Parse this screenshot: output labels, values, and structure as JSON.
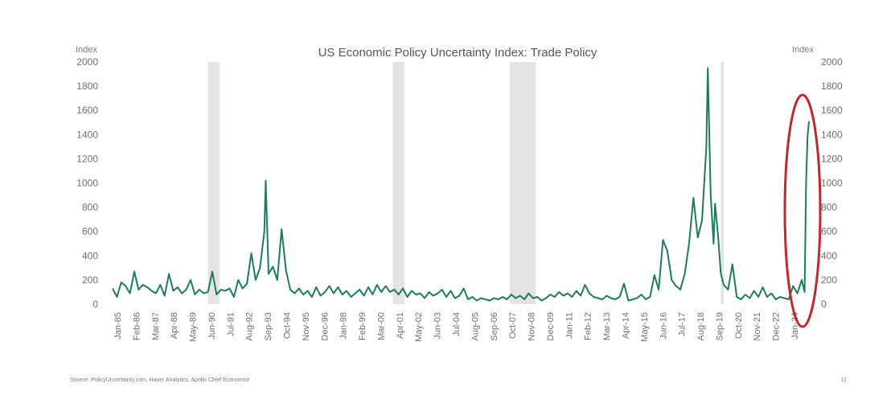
{
  "chart_data": {
    "type": "line",
    "title": "US Economic Policy Uncertainty Index: Trade Policy",
    "ylabel_left": "Index",
    "ylabel_right": "Index",
    "ylim": [
      0,
      2000
    ],
    "yticks": [
      0,
      200,
      400,
      600,
      800,
      1000,
      1200,
      1400,
      1600,
      1800,
      2000
    ],
    "x_tick_labels": [
      "Jan-85",
      "Feb-86",
      "Mar-87",
      "Apr-88",
      "May-89",
      "Jun-90",
      "Jul-91",
      "Aug-92",
      "Sep-93",
      "Oct-94",
      "Nov-95",
      "Dec-96",
      "Jan-98",
      "Feb-99",
      "Mar-00",
      "Apr-01",
      "May-02",
      "Jun-03",
      "Jul-04",
      "Aug-05",
      "Sep-06",
      "Oct-07",
      "Nov-08",
      "Dec-09",
      "Jan-11",
      "Feb-12",
      "Mar-13",
      "Apr-14",
      "May-15",
      "Jun-16",
      "Jul-17",
      "Aug-18",
      "Sep-19",
      "Oct-20",
      "Nov-21",
      "Dec-22",
      "Jan-24"
    ],
    "recessions": [
      [
        "1990-07",
        "1991-03"
      ],
      [
        "2001-03",
        "2001-11"
      ],
      [
        "2007-12",
        "2009-06"
      ],
      [
        "2020-02",
        "2020-04"
      ]
    ],
    "series": [
      {
        "color": "#1f7a60",
        "points": [
          [
            "1985-01",
            130
          ],
          [
            "1985-04",
            60
          ],
          [
            "1985-07",
            180
          ],
          [
            "1985-10",
            150
          ],
          [
            "1986-01",
            90
          ],
          [
            "1986-04",
            270
          ],
          [
            "1986-07",
            120
          ],
          [
            "1986-10",
            160
          ],
          [
            "1987-01",
            140
          ],
          [
            "1987-04",
            110
          ],
          [
            "1987-07",
            90
          ],
          [
            "1987-10",
            160
          ],
          [
            "1988-01",
            70
          ],
          [
            "1988-04",
            250
          ],
          [
            "1988-07",
            110
          ],
          [
            "1988-10",
            140
          ],
          [
            "1989-01",
            90
          ],
          [
            "1989-04",
            120
          ],
          [
            "1989-07",
            200
          ],
          [
            "1989-10",
            80
          ],
          [
            "1990-01",
            120
          ],
          [
            "1990-04",
            90
          ],
          [
            "1990-07",
            100
          ],
          [
            "1990-10",
            270
          ],
          [
            "1991-01",
            80
          ],
          [
            "1991-04",
            120
          ],
          [
            "1991-07",
            110
          ],
          [
            "1991-10",
            130
          ],
          [
            "1992-01",
            60
          ],
          [
            "1992-04",
            200
          ],
          [
            "1992-07",
            130
          ],
          [
            "1992-10",
            170
          ],
          [
            "1993-01",
            420
          ],
          [
            "1993-04",
            200
          ],
          [
            "1993-07",
            300
          ],
          [
            "1993-10",
            600
          ],
          [
            "1993-11",
            1020
          ],
          [
            "1994-01",
            250
          ],
          [
            "1994-04",
            310
          ],
          [
            "1994-07",
            200
          ],
          [
            "1994-10",
            620
          ],
          [
            "1995-01",
            280
          ],
          [
            "1995-04",
            120
          ],
          [
            "1995-07",
            90
          ],
          [
            "1995-10",
            130
          ],
          [
            "1996-01",
            80
          ],
          [
            "1996-04",
            110
          ],
          [
            "1996-07",
            60
          ],
          [
            "1996-10",
            140
          ],
          [
            "1997-01",
            70
          ],
          [
            "1997-04",
            100
          ],
          [
            "1997-07",
            150
          ],
          [
            "1997-10",
            90
          ],
          [
            "1998-01",
            140
          ],
          [
            "1998-04",
            80
          ],
          [
            "1998-07",
            110
          ],
          [
            "1998-10",
            60
          ],
          [
            "1999-01",
            90
          ],
          [
            "1999-04",
            120
          ],
          [
            "1999-07",
            70
          ],
          [
            "1999-10",
            140
          ],
          [
            "2000-01",
            80
          ],
          [
            "2000-04",
            160
          ],
          [
            "2000-07",
            100
          ],
          [
            "2000-10",
            150
          ],
          [
            "2001-01",
            100
          ],
          [
            "2001-04",
            120
          ],
          [
            "2001-07",
            80
          ],
          [
            "2001-10",
            130
          ],
          [
            "2002-01",
            60
          ],
          [
            "2002-04",
            110
          ],
          [
            "2002-07",
            80
          ],
          [
            "2002-10",
            90
          ],
          [
            "2003-01",
            50
          ],
          [
            "2003-04",
            100
          ],
          [
            "2003-07",
            70
          ],
          [
            "2003-10",
            90
          ],
          [
            "2004-01",
            120
          ],
          [
            "2004-04",
            60
          ],
          [
            "2004-07",
            110
          ],
          [
            "2004-10",
            50
          ],
          [
            "2005-01",
            70
          ],
          [
            "2005-04",
            130
          ],
          [
            "2005-07",
            40
          ],
          [
            "2005-10",
            60
          ],
          [
            "2006-01",
            30
          ],
          [
            "2006-04",
            50
          ],
          [
            "2006-07",
            40
          ],
          [
            "2006-10",
            30
          ],
          [
            "2007-01",
            50
          ],
          [
            "2007-04",
            40
          ],
          [
            "2007-07",
            60
          ],
          [
            "2007-10",
            40
          ],
          [
            "2008-01",
            80
          ],
          [
            "2008-04",
            50
          ],
          [
            "2008-07",
            70
          ],
          [
            "2008-10",
            40
          ],
          [
            "2009-01",
            90
          ],
          [
            "2009-04",
            50
          ],
          [
            "2009-07",
            60
          ],
          [
            "2009-10",
            30
          ],
          [
            "2010-01",
            50
          ],
          [
            "2010-04",
            80
          ],
          [
            "2010-07",
            60
          ],
          [
            "2010-10",
            100
          ],
          [
            "2011-01",
            70
          ],
          [
            "2011-04",
            90
          ],
          [
            "2011-07",
            60
          ],
          [
            "2011-10",
            110
          ],
          [
            "2012-01",
            70
          ],
          [
            "2012-04",
            160
          ],
          [
            "2012-07",
            90
          ],
          [
            "2012-10",
            60
          ],
          [
            "2013-01",
            50
          ],
          [
            "2013-04",
            40
          ],
          [
            "2013-07",
            70
          ],
          [
            "2013-10",
            50
          ],
          [
            "2014-01",
            40
          ],
          [
            "2014-04",
            60
          ],
          [
            "2014-07",
            170
          ],
          [
            "2014-10",
            30
          ],
          [
            "2015-01",
            40
          ],
          [
            "2015-04",
            50
          ],
          [
            "2015-07",
            80
          ],
          [
            "2015-10",
            40
          ],
          [
            "2016-01",
            60
          ],
          [
            "2016-04",
            240
          ],
          [
            "2016-07",
            120
          ],
          [
            "2016-10",
            530
          ],
          [
            "2017-01",
            440
          ],
          [
            "2017-04",
            200
          ],
          [
            "2017-07",
            150
          ],
          [
            "2017-10",
            120
          ],
          [
            "2018-01",
            250
          ],
          [
            "2018-04",
            500
          ],
          [
            "2018-07",
            880
          ],
          [
            "2018-10",
            550
          ],
          [
            "2019-01",
            690
          ],
          [
            "2019-04",
            1300
          ],
          [
            "2019-05",
            1950
          ],
          [
            "2019-07",
            900
          ],
          [
            "2019-09",
            500
          ],
          [
            "2019-10",
            830
          ],
          [
            "2019-12",
            580
          ],
          [
            "2020-02",
            250
          ],
          [
            "2020-04",
            160
          ],
          [
            "2020-07",
            120
          ],
          [
            "2020-10",
            330
          ],
          [
            "2021-01",
            60
          ],
          [
            "2021-04",
            40
          ],
          [
            "2021-07",
            80
          ],
          [
            "2021-10",
            50
          ],
          [
            "2022-01",
            110
          ],
          [
            "2022-04",
            60
          ],
          [
            "2022-07",
            140
          ],
          [
            "2022-10",
            60
          ],
          [
            "2023-01",
            90
          ],
          [
            "2023-04",
            40
          ],
          [
            "2023-07",
            60
          ],
          [
            "2023-10",
            50
          ],
          [
            "2024-01",
            40
          ],
          [
            "2024-04",
            150
          ],
          [
            "2024-07",
            90
          ],
          [
            "2024-10",
            200
          ],
          [
            "2024-12",
            100
          ],
          [
            "2025-01",
            1000
          ],
          [
            "2025-02",
            1380
          ],
          [
            "2025-03",
            1510
          ]
        ]
      }
    ],
    "annotation": {
      "type": "ellipse",
      "color": "#c0282d",
      "around": "2024-10 to 2025-03 spike"
    }
  },
  "footer": {
    "source": "Source: PolicyUncertainty.com, Haver Analytics, Apollo Chief Economist",
    "page_number": "11"
  }
}
